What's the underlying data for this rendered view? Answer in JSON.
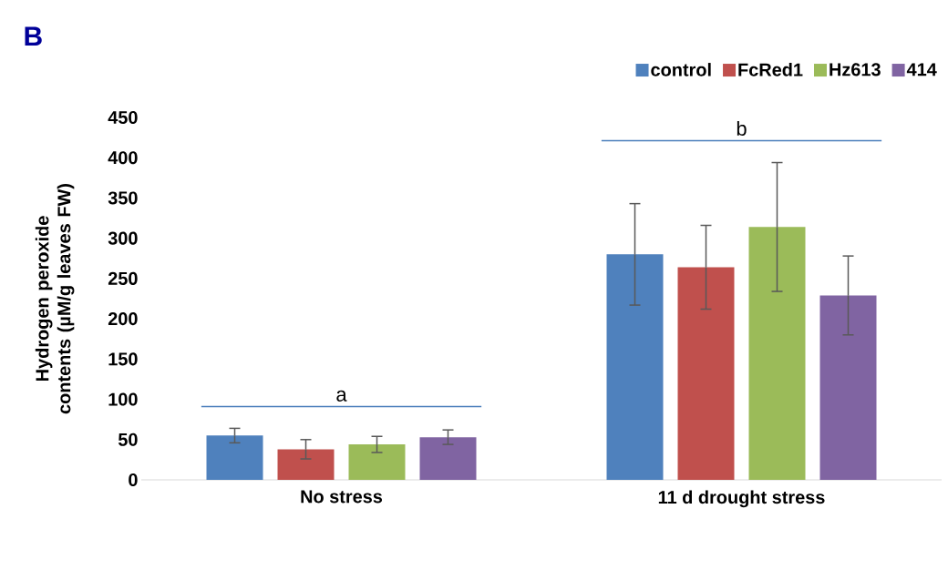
{
  "chart_data": {
    "type": "bar",
    "title": "B",
    "ylabel": "Hydrogen peroxide contents (µM/g leaves FW)",
    "categories": [
      "No stress",
      "11 d drought stress"
    ],
    "series": [
      {
        "name": "control",
        "color": "#4f81bd",
        "values": [
          55,
          280
        ],
        "errors": [
          9,
          63
        ]
      },
      {
        "name": "FcRed1",
        "color": "#c0504d",
        "values": [
          38,
          264
        ],
        "errors": [
          12,
          52
        ]
      },
      {
        "name": "Hz613",
        "color": "#9bbb59",
        "values": [
          44,
          314
        ],
        "errors": [
          10,
          80
        ]
      },
      {
        "name": "414",
        "color": "#8064a2",
        "values": [
          53,
          229
        ],
        "errors": [
          9,
          49
        ]
      }
    ],
    "ylim": [
      0,
      450
    ],
    "yticks": [
      0,
      50,
      100,
      150,
      200,
      250,
      300,
      350,
      400,
      450
    ],
    "annotations": [
      "a",
      "b"
    ],
    "grid": false,
    "legend": "top right"
  }
}
